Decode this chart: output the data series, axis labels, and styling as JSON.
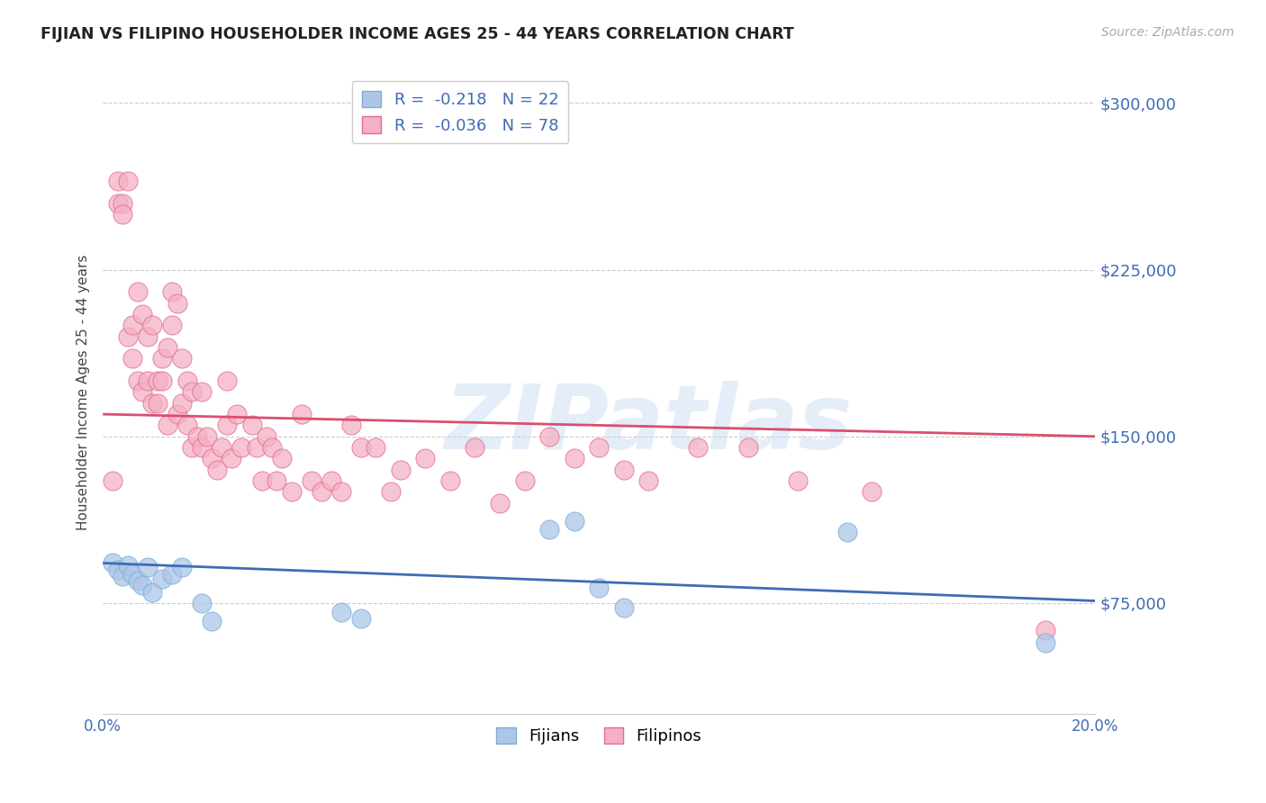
{
  "title": "FIJIAN VS FILIPINO HOUSEHOLDER INCOME AGES 25 - 44 YEARS CORRELATION CHART",
  "source": "Source: ZipAtlas.com",
  "ylabel": "Householder Income Ages 25 - 44 years",
  "xlim": [
    0.0,
    0.2
  ],
  "ylim": [
    25000,
    315000
  ],
  "yticks": [
    75000,
    150000,
    225000,
    300000
  ],
  "ytick_labels": [
    "$75,000",
    "$150,000",
    "$225,000",
    "$300,000"
  ],
  "xticks": [
    0.0,
    0.05,
    0.1,
    0.15,
    0.2
  ],
  "xtick_labels": [
    "0.0%",
    "",
    "",
    "",
    "20.0%"
  ],
  "grid_color": "#cccccc",
  "background_color": "#ffffff",
  "fijian_color": "#adc6e8",
  "fijian_edge_color": "#7aafd4",
  "filipino_color": "#f5b0c5",
  "filipino_edge_color": "#e07090",
  "fijian_line_color": "#3f6bb5",
  "filipino_line_color": "#d94f6e",
  "fijian_R": -0.218,
  "fijian_N": 22,
  "filipino_R": -0.036,
  "filipino_N": 78,
  "watermark": "ZIPatlas",
  "fijian_trend_x": [
    0.0,
    0.2
  ],
  "fijian_trend_y": [
    93000,
    76000
  ],
  "filipino_trend_x": [
    0.0,
    0.2
  ],
  "filipino_trend_y": [
    160000,
    150000
  ],
  "fijian_x": [
    0.002,
    0.003,
    0.004,
    0.005,
    0.006,
    0.007,
    0.008,
    0.009,
    0.01,
    0.012,
    0.014,
    0.016,
    0.02,
    0.022,
    0.048,
    0.052,
    0.09,
    0.095,
    0.1,
    0.105,
    0.15,
    0.19
  ],
  "fijian_y": [
    93000,
    90000,
    87000,
    92000,
    88000,
    85000,
    83000,
    91000,
    80000,
    86000,
    88000,
    91000,
    75000,
    67000,
    71000,
    68000,
    108000,
    112000,
    82000,
    73000,
    107000,
    57000
  ],
  "filipino_x": [
    0.002,
    0.003,
    0.003,
    0.004,
    0.004,
    0.005,
    0.005,
    0.006,
    0.006,
    0.007,
    0.007,
    0.008,
    0.008,
    0.009,
    0.009,
    0.01,
    0.01,
    0.011,
    0.011,
    0.012,
    0.012,
    0.013,
    0.013,
    0.014,
    0.014,
    0.015,
    0.015,
    0.016,
    0.016,
    0.017,
    0.017,
    0.018,
    0.018,
    0.019,
    0.02,
    0.02,
    0.021,
    0.022,
    0.023,
    0.024,
    0.025,
    0.025,
    0.026,
    0.027,
    0.028,
    0.03,
    0.031,
    0.032,
    0.033,
    0.034,
    0.035,
    0.036,
    0.038,
    0.04,
    0.042,
    0.044,
    0.046,
    0.048,
    0.05,
    0.052,
    0.055,
    0.058,
    0.06,
    0.065,
    0.07,
    0.075,
    0.08,
    0.085,
    0.09,
    0.095,
    0.1,
    0.105,
    0.11,
    0.12,
    0.13,
    0.14,
    0.155,
    0.19
  ],
  "filipino_y": [
    130000,
    255000,
    265000,
    255000,
    250000,
    195000,
    265000,
    185000,
    200000,
    175000,
    215000,
    170000,
    205000,
    175000,
    195000,
    200000,
    165000,
    175000,
    165000,
    185000,
    175000,
    190000,
    155000,
    200000,
    215000,
    160000,
    210000,
    185000,
    165000,
    175000,
    155000,
    170000,
    145000,
    150000,
    170000,
    145000,
    150000,
    140000,
    135000,
    145000,
    175000,
    155000,
    140000,
    160000,
    145000,
    155000,
    145000,
    130000,
    150000,
    145000,
    130000,
    140000,
    125000,
    160000,
    130000,
    125000,
    130000,
    125000,
    155000,
    145000,
    145000,
    125000,
    135000,
    140000,
    130000,
    145000,
    120000,
    130000,
    150000,
    140000,
    145000,
    135000,
    130000,
    145000,
    145000,
    130000,
    125000,
    63000
  ]
}
